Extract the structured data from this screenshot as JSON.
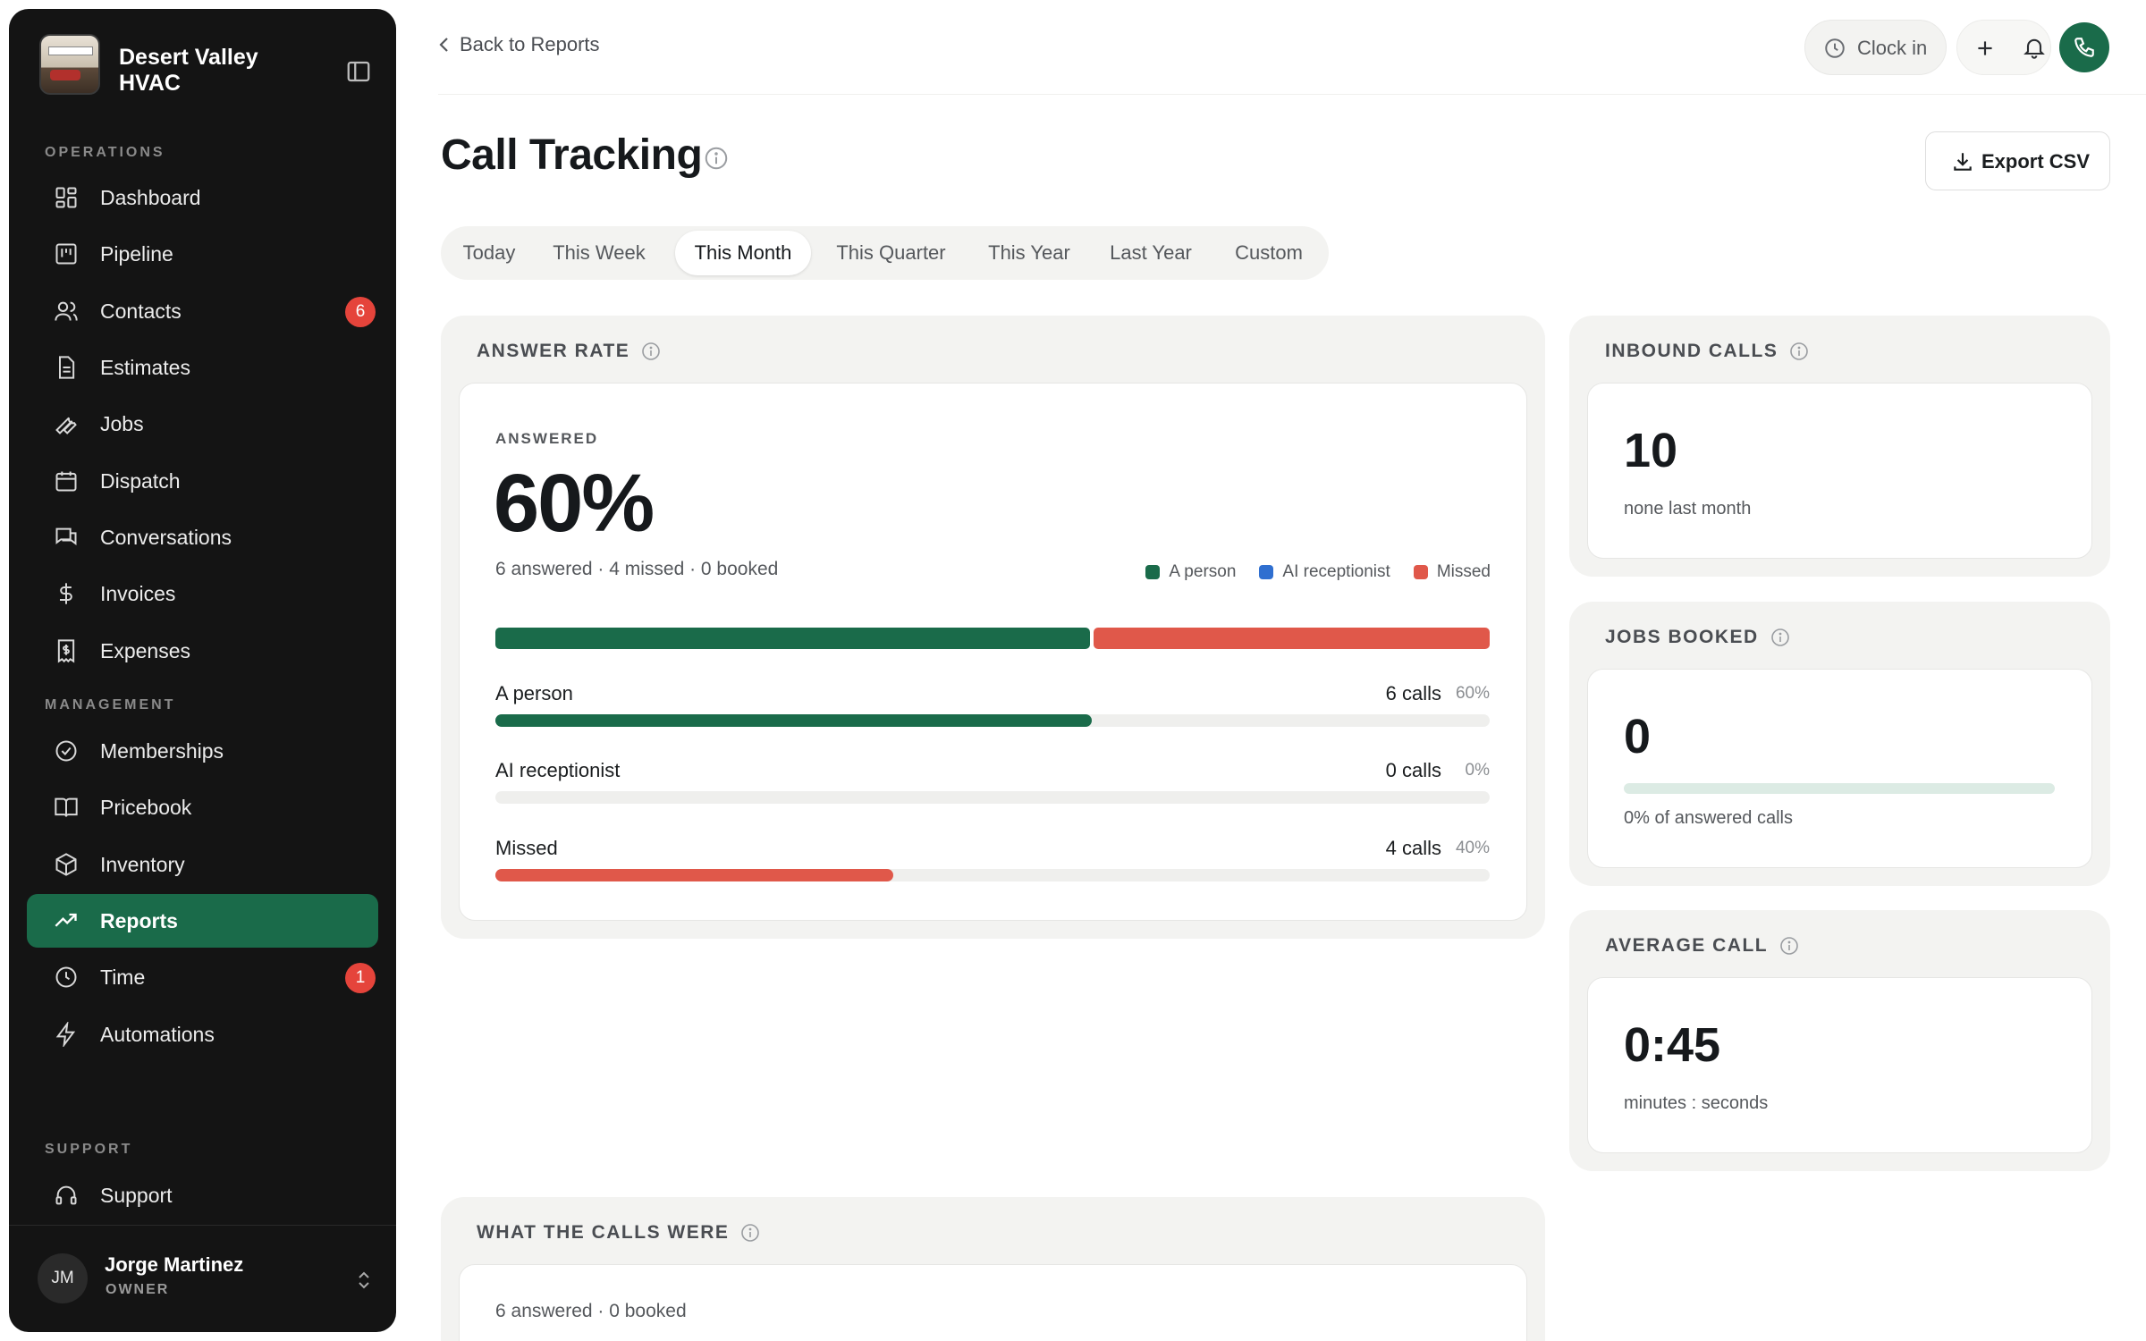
{
  "sidebar": {
    "brand_name": "Desert Valley HVAC",
    "sections": {
      "operations": "OPERATIONS",
      "management": "MANAGEMENT",
      "support": "SUPPORT"
    },
    "items": [
      {
        "label": "Dashboard",
        "icon": "grid-icon"
      },
      {
        "label": "Pipeline",
        "icon": "kanban-icon"
      },
      {
        "label": "Contacts",
        "icon": "users-icon",
        "badge": "6"
      },
      {
        "label": "Estimates",
        "icon": "document-icon"
      },
      {
        "label": "Jobs",
        "icon": "wrench-icon"
      },
      {
        "label": "Dispatch",
        "icon": "calendar-icon"
      },
      {
        "label": "Conversations",
        "icon": "chat-icon"
      },
      {
        "label": "Invoices",
        "icon": "dollar-icon"
      },
      {
        "label": "Expenses",
        "icon": "receipt-icon"
      },
      {
        "label": "Memberships",
        "icon": "badge-check-icon"
      },
      {
        "label": "Pricebook",
        "icon": "book-icon"
      },
      {
        "label": "Inventory",
        "icon": "box-icon"
      },
      {
        "label": "Reports",
        "icon": "trending-icon",
        "active": true
      },
      {
        "label": "Time",
        "icon": "clock-icon",
        "badge": "1"
      },
      {
        "label": "Automations",
        "icon": "bolt-icon"
      },
      {
        "label": "Support",
        "icon": "headset-icon"
      }
    ],
    "user": {
      "initials": "JM",
      "name": "Jorge Martinez",
      "role": "OWNER"
    }
  },
  "topbar": {
    "back_label": "Back to Reports",
    "clock_in_label": "Clock in"
  },
  "header": {
    "title": "Call Tracking",
    "export_label": "Export CSV"
  },
  "tabs": [
    {
      "label": "Today"
    },
    {
      "label": "This Week"
    },
    {
      "label": "This Month",
      "active": true
    },
    {
      "label": "This Quarter"
    },
    {
      "label": "This Year"
    },
    {
      "label": "Last Year"
    },
    {
      "label": "Custom"
    }
  ],
  "answer_rate": {
    "title": "ANSWER RATE",
    "label": "ANSWERED",
    "value": "60%",
    "summary": "6 answered · 4 missed · 0 booked",
    "legend": [
      {
        "label": "A person",
        "color": "#1a6b4a"
      },
      {
        "label": "AI receptionist",
        "color": "#2f6fd0"
      },
      {
        "label": "Missed",
        "color": "#e0584a"
      }
    ],
    "breakdown": [
      {
        "label": "A person",
        "calls": "6 calls",
        "pct": "60%",
        "fraction": 0.6,
        "color": "#1a6b4a"
      },
      {
        "label": "AI receptionist",
        "calls": "0 calls",
        "pct": "0%",
        "fraction": 0.0,
        "color": "#2f6fd0"
      },
      {
        "label": "Missed",
        "calls": "4 calls",
        "pct": "40%",
        "fraction": 0.4,
        "color": "#e0584a"
      }
    ]
  },
  "inbound_calls": {
    "title": "INBOUND CALLS",
    "value": "10",
    "sub": "none last month"
  },
  "jobs_booked": {
    "title": "JOBS BOOKED",
    "value": "0",
    "sub": "0% of answered calls",
    "fraction": 0.0
  },
  "average_call": {
    "title": "AVERAGE CALL",
    "value": "0:45",
    "sub": "minutes : seconds"
  },
  "calls_breakdown": {
    "title": "WHAT THE CALLS WERE",
    "summary": "6 answered · 0 booked"
  }
}
